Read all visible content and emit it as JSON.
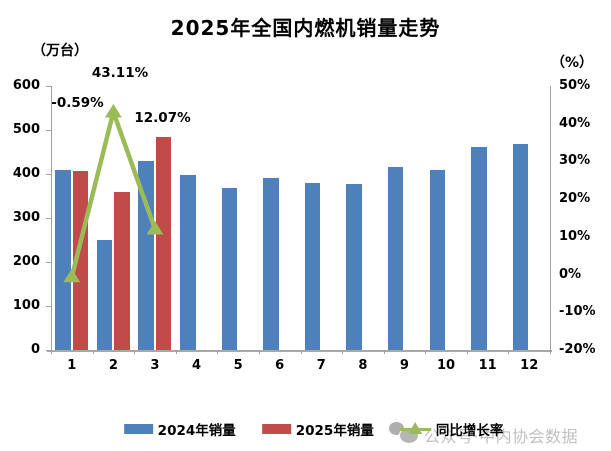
{
  "title": "2025年全国内燃机销量走势",
  "left_unit": "（万台）",
  "right_unit": "（%）",
  "chart_data": {
    "type": "bar",
    "subtype": "grouped-bar-with-line-on-secondary-axis",
    "title": "2025年全国内燃机销量走势",
    "categories": [
      "1",
      "2",
      "3",
      "4",
      "5",
      "6",
      "7",
      "8",
      "9",
      "10",
      "11",
      "12"
    ],
    "series": [
      {
        "name": "2024年销量",
        "type": "bar",
        "axis": "left",
        "color": "#4E80BC",
        "values": [
          409,
          250,
          430,
          398,
          368,
          392,
          380,
          377,
          415,
          410,
          462,
          468
        ]
      },
      {
        "name": "2025年销量",
        "type": "bar",
        "axis": "left",
        "color": "#BF4C49",
        "values": [
          406,
          358,
          483,
          null,
          null,
          null,
          null,
          null,
          null,
          null,
          null,
          null
        ]
      },
      {
        "name": "同比增长率",
        "type": "line",
        "axis": "right",
        "color": "#9BBB59",
        "values": [
          -0.59,
          43.11,
          12.07
        ],
        "point_labels": [
          "-0.59%",
          "43.11%",
          "12.07%"
        ]
      }
    ],
    "left_axis": {
      "label": "（万台）",
      "min": 0,
      "max": 600,
      "ticks": [
        "600",
        "500",
        "400",
        "300",
        "200",
        "100",
        "0"
      ]
    },
    "right_axis": {
      "label": "（%）",
      "min": -20,
      "max": 50,
      "ticks": [
        "50%",
        "40%",
        "30%",
        "20%",
        "10%",
        "0%",
        "-10%",
        "-20%"
      ]
    },
    "grid": false,
    "legend_position": "bottom"
  },
  "legend": {
    "items": [
      {
        "label": "2024年销量",
        "color": "#4E80BC",
        "marker": "bar"
      },
      {
        "label": "2025年销量",
        "color": "#BF4C49",
        "marker": "bar"
      },
      {
        "label": "同比增长率",
        "color": "#9BBB59",
        "marker": "line-triangle"
      }
    ]
  },
  "watermark": {
    "icon": "wechat-icon",
    "text": "公众号·中内协会数据"
  }
}
